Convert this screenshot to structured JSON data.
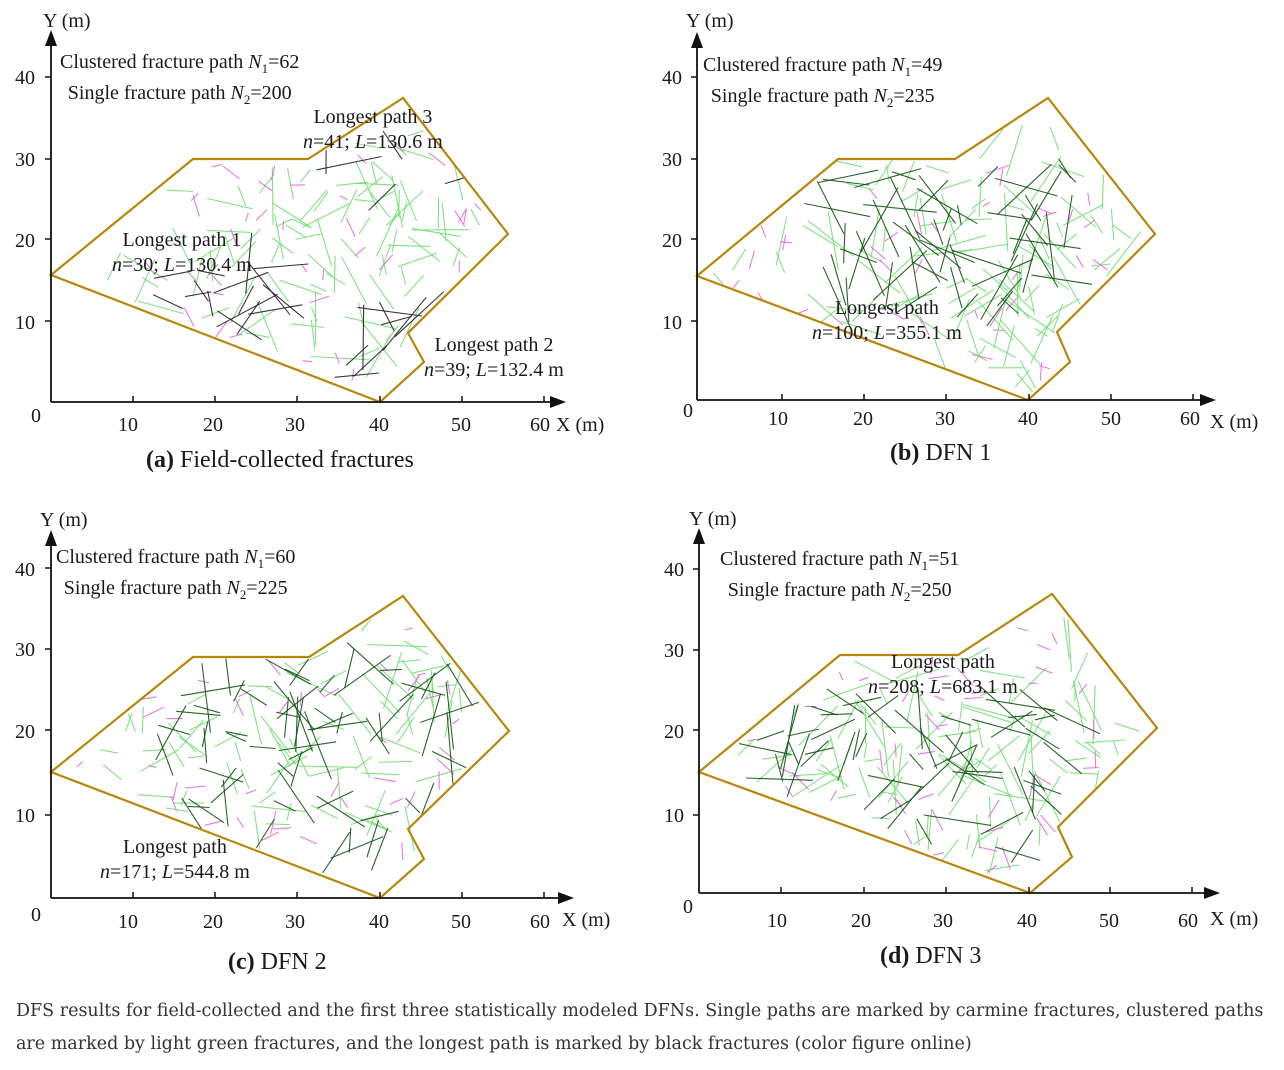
{
  "colors": {
    "single": "#e26ddc",
    "clustered": "#6fdc6f",
    "longest": "#222222",
    "longest_dark": "#145214",
    "boundary": "#b8860b",
    "axis": "#111111"
  },
  "axes": {
    "y_label": "Y (m)",
    "x_label": "X (m)",
    "origin": "0",
    "x_ticks": [
      "10",
      "20",
      "30",
      "40",
      "50",
      "60"
    ],
    "y_ticks": [
      "10",
      "20",
      "30",
      "40"
    ]
  },
  "panels": [
    {
      "id": "a",
      "title_letter": "(a)",
      "title_text": " Field-collected fractures",
      "clustered_label": "Clustered fracture path ",
      "n1_sym": "N",
      "n1_sub": "1",
      "n1_val": "=62",
      "single_label": "Single fracture path ",
      "n2_sym": "N",
      "n2_sub": "2",
      "n2_val": "=200",
      "paths": [
        {
          "name": "Longest path 3",
          "n": "41",
          "L": "130.6 m"
        },
        {
          "name": "Longest path 1",
          "n": "30",
          "L": "130.4 m"
        },
        {
          "name": "Longest path 2",
          "n": "39",
          "L": "132.4 m"
        }
      ]
    },
    {
      "id": "b",
      "title_letter": "(b)",
      "title_text": " DFN 1",
      "clustered_label": "Clustered fracture path ",
      "n1_sym": "N",
      "n1_sub": "1",
      "n1_val": "=49",
      "single_label": "Single fracture path ",
      "n2_sym": "N",
      "n2_sub": "2",
      "n2_val": "=235",
      "paths": [
        {
          "name": "Longest path",
          "n": "100",
          "L": "355.1 m"
        }
      ]
    },
    {
      "id": "c",
      "title_letter": "(c)",
      "title_text": " DFN 2",
      "clustered_label": "Clustered fracture path ",
      "n1_sym": "N",
      "n1_sub": "1",
      "n1_val": "=60",
      "single_label": "Single fracture path ",
      "n2_sym": "N",
      "n2_sub": "2",
      "n2_val": "=225",
      "paths": [
        {
          "name": "Longest path",
          "n": "171",
          "L": "544.8 m"
        }
      ]
    },
    {
      "id": "d",
      "title_letter": "(d)",
      "title_text": " DFN 3",
      "clustered_label": "Clustered fracture path ",
      "n1_sym": "N",
      "n1_sub": "1",
      "n1_val": "=51",
      "single_label": "Single fracture path ",
      "n2_sym": "N",
      "n2_sub": "2",
      "n2_val": "=250",
      "paths": [
        {
          "name": "Longest path",
          "n": "208",
          "L": "683.1 m"
        }
      ]
    }
  ],
  "caption": "DFS results for field-collected and the first three statistically modeled DFNs. Single paths are marked by carmine fractures, clustered paths are marked by light green fractures, and the longest path is marked by black fractures (color figure online)"
}
